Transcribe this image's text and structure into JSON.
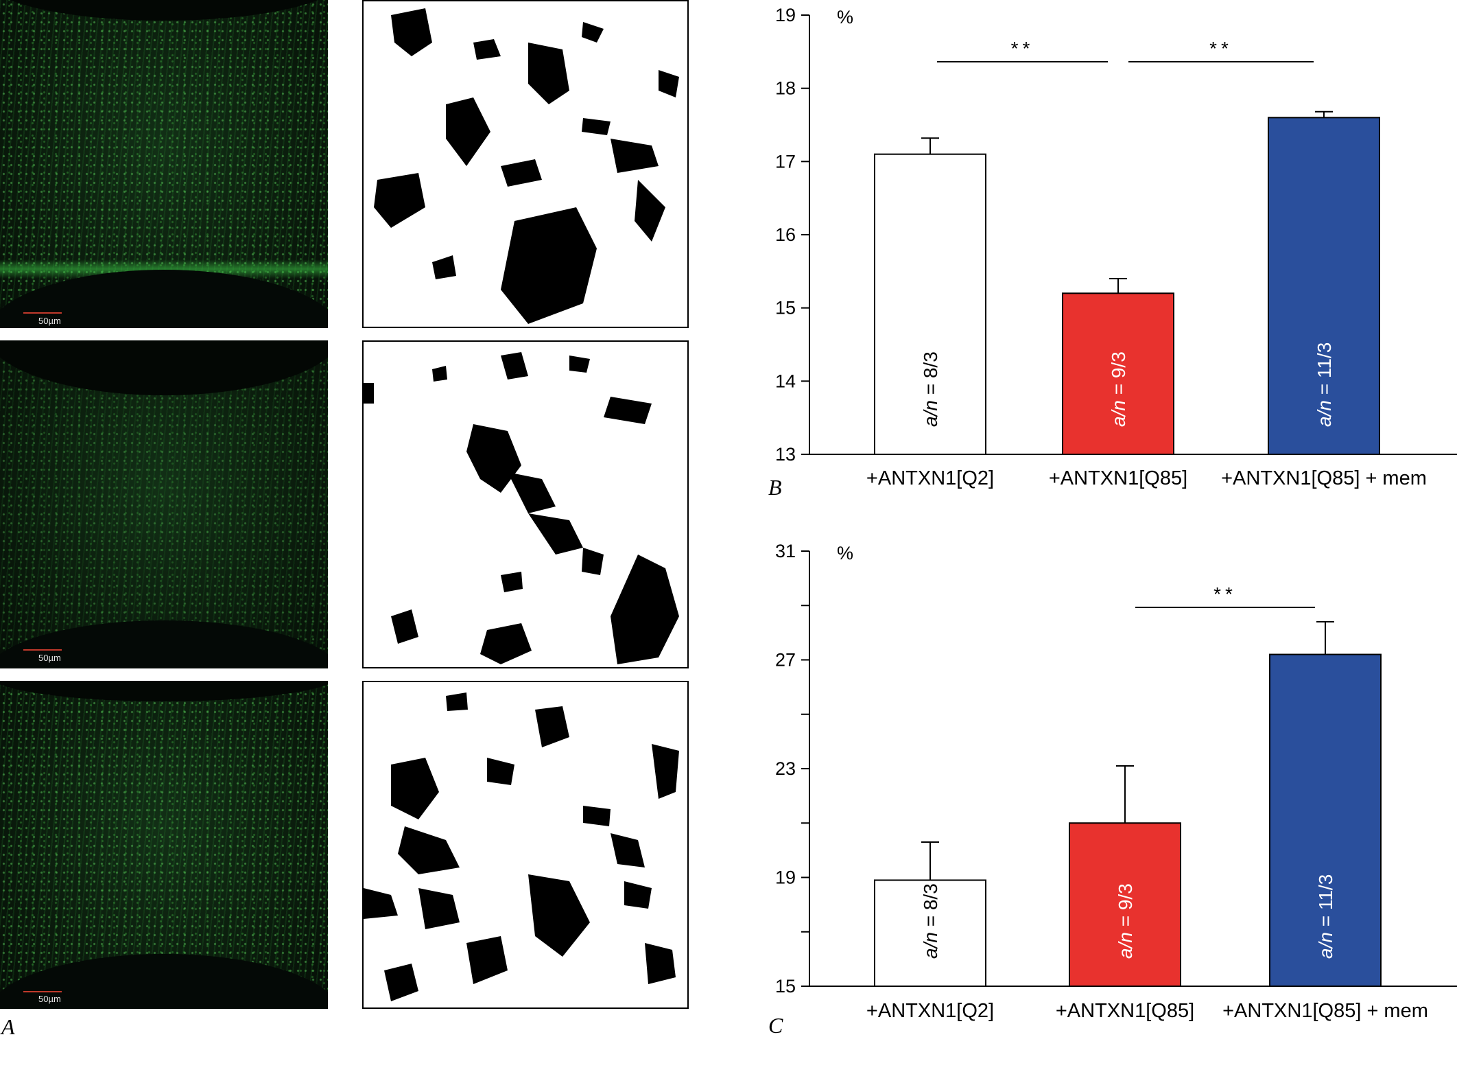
{
  "panel_labels": {
    "a": "A",
    "b": "B",
    "c": "C"
  },
  "micrographs": [
    {
      "scale_label": "50µm"
    },
    {
      "scale_label": "50µm"
    },
    {
      "scale_label": "50µm"
    }
  ],
  "colors": {
    "micrograph_green": "#3cc84a",
    "scale_bar": "#c0392b",
    "bar_q2": "#ffffff",
    "bar_q85": "#e8322e",
    "bar_mem": "#2a4f9c"
  },
  "chart_data": [
    {
      "type": "bar",
      "unit_label": "%",
      "ylim": [
        13,
        19
      ],
      "yticks": [
        13,
        14,
        15,
        16,
        17,
        18,
        19
      ],
      "categories": [
        "+ANTXN1[Q2]",
        "+ANTXN1[Q85]",
        "+ANTXN1[Q85] + mem"
      ],
      "values": [
        17.1,
        15.2,
        17.6
      ],
      "errors": [
        0.22,
        0.2,
        0.08
      ],
      "bar_colors": [
        "#ffffff",
        "#e8322e",
        "#2a4f9c"
      ],
      "bar_text_colors": [
        "#000000",
        "#ffffff",
        "#ffffff"
      ],
      "bar_labels": [
        {
          "italic": "a/n",
          "rest": " = 8/3"
        },
        {
          "italic": "a/n",
          "rest": " = 9/3"
        },
        {
          "italic": "a/n",
          "rest": " = 11/3"
        }
      ],
      "significance": [
        {
          "from": 0,
          "to": 1,
          "label": "**"
        },
        {
          "from": 1,
          "to": 2,
          "label": "**"
        }
      ]
    },
    {
      "type": "bar",
      "unit_label": "%",
      "ylim": [
        15,
        31
      ],
      "yticks": [
        15,
        19,
        23,
        27,
        31
      ],
      "categories": [
        "+ANTXN1[Q2]",
        "+ANTXN1[Q85]",
        "+ANTXN1[Q85] + mem"
      ],
      "values": [
        18.9,
        21.0,
        27.2
      ],
      "errors": [
        1.4,
        2.1,
        1.2
      ],
      "bar_colors": [
        "#ffffff",
        "#e8322e",
        "#2a4f9c"
      ],
      "bar_text_colors": [
        "#000000",
        "#ffffff",
        "#ffffff"
      ],
      "bar_labels": [
        {
          "italic": "a/n",
          "rest": " = 8/3"
        },
        {
          "italic": "a/n",
          "rest": " = 9/3"
        },
        {
          "italic": "a/n",
          "rest": " = 11/3"
        }
      ],
      "significance": [
        {
          "from": 1,
          "to": 2,
          "label": "**"
        }
      ]
    }
  ]
}
